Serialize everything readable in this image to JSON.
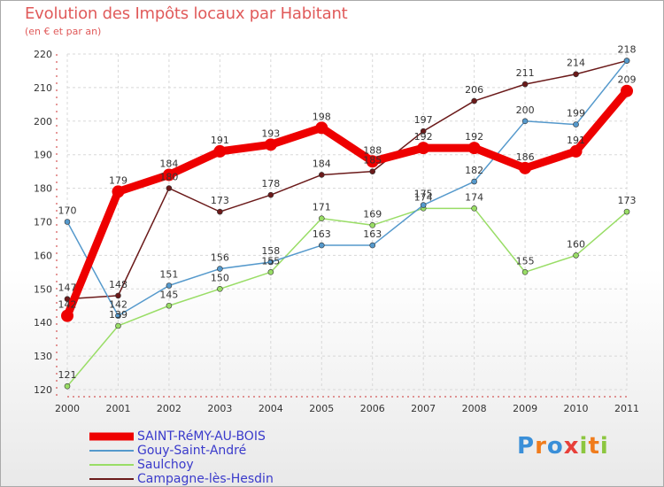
{
  "title": "Evolution des Impôts locaux par Habitant",
  "subtitle": "(en € et par an)",
  "logo": {
    "text": "Proxiti",
    "letters": [
      "P",
      "r",
      "o",
      "x",
      "i",
      "t",
      "i"
    ],
    "colors": [
      "#3a8fd8",
      "#f07c1c",
      "#3a8fd8",
      "#e8403a",
      "#8cc63f",
      "#f07c1c",
      "#8cc63f"
    ]
  },
  "chart_data": {
    "type": "line",
    "title": "Evolution des Impôts locaux par Habitant",
    "ylabel": "(en € et par an)",
    "xlabel": "",
    "categories": [
      "2000",
      "2001",
      "2002",
      "2003",
      "2004",
      "2005",
      "2006",
      "2007",
      "2008",
      "2009",
      "2010",
      "2011"
    ],
    "ylim": [
      120,
      220
    ],
    "yticks": [
      120,
      130,
      140,
      150,
      160,
      170,
      180,
      190,
      200,
      210,
      220
    ],
    "grid": true,
    "series": [
      {
        "name": "Campagne-lès-Hesdin",
        "color": "#6b1a1a",
        "values": [
          147,
          148,
          180,
          173,
          178,
          184,
          185,
          197,
          206,
          211,
          214,
          218
        ],
        "labels": [
          "147",
          "148",
          "180",
          "173",
          "178",
          "184",
          "185",
          "197",
          "206",
          "211",
          "214",
          "218"
        ]
      },
      {
        "name": "Saulchoy",
        "color": "#99dd66",
        "values": [
          121,
          139,
          145,
          150,
          155,
          171,
          169,
          174,
          174,
          155,
          160,
          173
        ],
        "labels": [
          "121",
          "139",
          "145",
          "150",
          "155",
          "171",
          "169",
          "174",
          "174",
          "155",
          "160",
          "173"
        ]
      },
      {
        "name": "Gouy-Saint-André",
        "color": "#5599cc",
        "values": [
          170,
          142,
          151,
          156,
          158,
          163,
          163,
          175,
          182,
          200,
          199,
          218
        ],
        "labels": [
          "170",
          "142",
          "151",
          "156",
          "158",
          "163",
          "163",
          "175",
          "182",
          "200",
          "199",
          ""
        ]
      },
      {
        "name": "SAINT-RéMY-AU-BOIS",
        "color": "#ee0000",
        "values": [
          142,
          179,
          184,
          191,
          193,
          198,
          188,
          192,
          192,
          186,
          191,
          209
        ],
        "labels": [
          "142",
          "179",
          "184",
          "191",
          "193",
          "198",
          "188",
          "192",
          "192",
          "186",
          "191",
          "209"
        ]
      }
    ],
    "legend": [
      "SAINT-RéMY-AU-BOIS",
      "Gouy-Saint-André",
      "Saulchoy",
      "Campagne-lès-Hesdin"
    ]
  }
}
